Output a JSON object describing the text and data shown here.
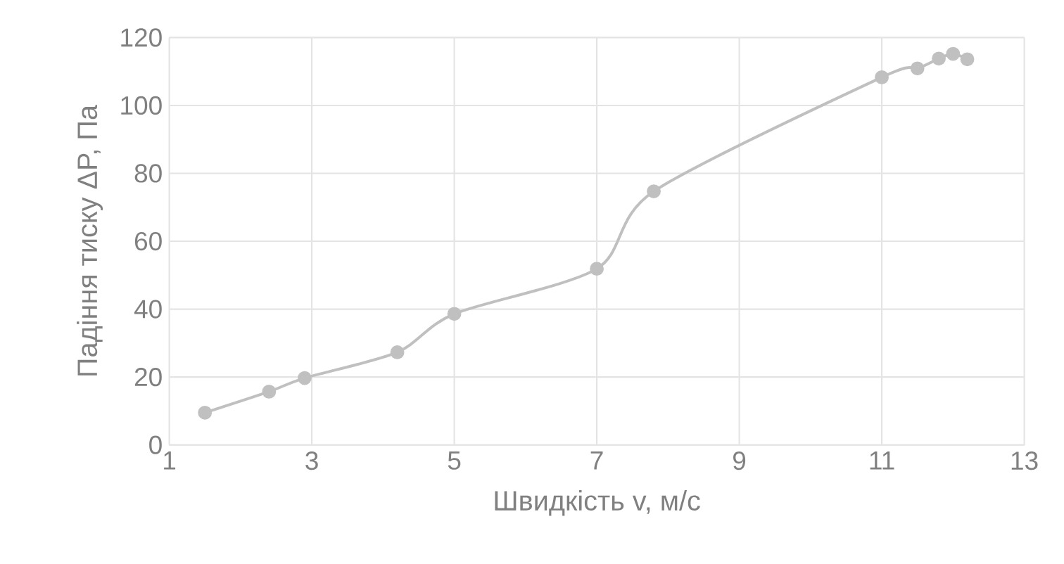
{
  "chart_data": {
    "type": "line",
    "xlabel": "Швидкість v, м/с",
    "ylabel": "Падіння тиску ΔP, Па",
    "x": [
      1.5,
      2.4,
      2.9,
      4.2,
      5.0,
      7.0,
      7.8,
      11.0,
      11.5,
      11.8,
      12.0,
      12.2
    ],
    "series": [
      {
        "color": "#c0c0c0",
        "values": [
          9.5,
          15.7,
          19.7,
          27.3,
          38.6,
          51.9,
          74.7,
          108.3,
          110.9,
          113.8,
          115.2,
          113.6
        ]
      }
    ],
    "xlim": [
      1,
      13
    ],
    "xticks": [
      1,
      3,
      5,
      7,
      9,
      11,
      13
    ],
    "ylim": [
      0,
      120
    ],
    "yticks": [
      0,
      20,
      40,
      60,
      80,
      100,
      120
    ],
    "grid": true,
    "marker": "circle",
    "line_style": "solid"
  }
}
